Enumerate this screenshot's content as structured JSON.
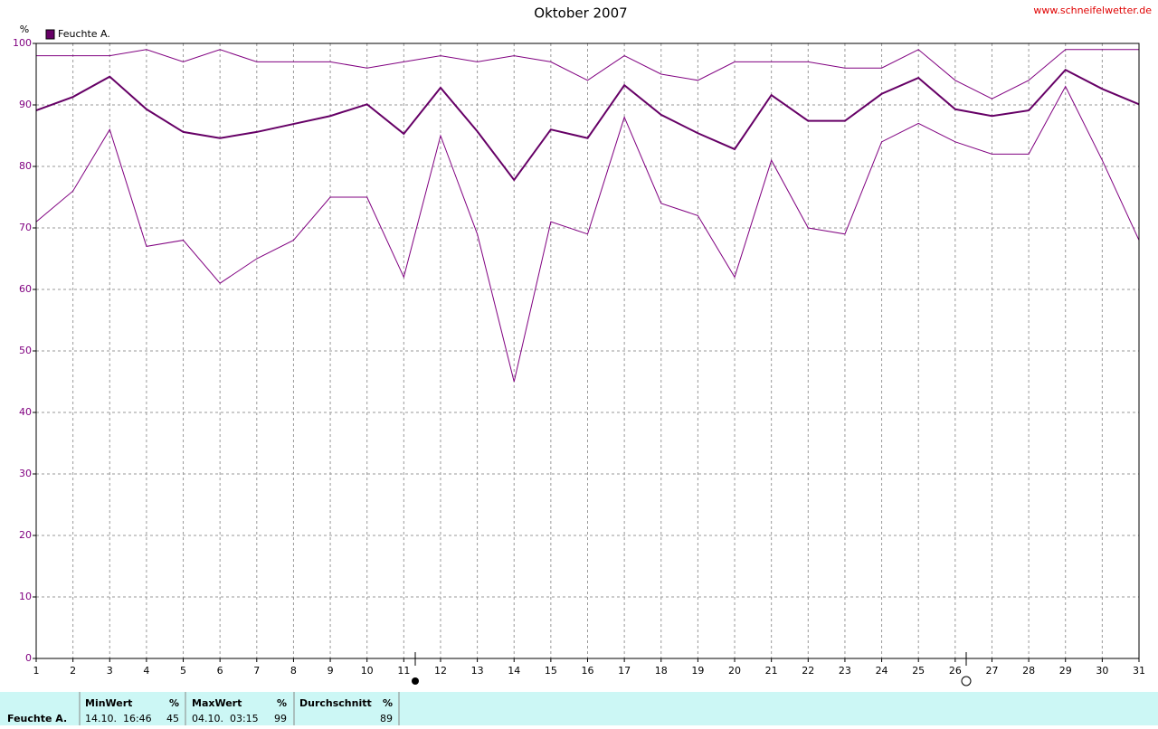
{
  "chart_data": {
    "type": "line",
    "title": "Oktober 2007",
    "watermark": "www.schneifelwetter.de",
    "y_unit": "%",
    "x": [
      1,
      2,
      3,
      4,
      5,
      6,
      7,
      8,
      9,
      10,
      11,
      12,
      13,
      14,
      15,
      16,
      17,
      18,
      19,
      20,
      21,
      22,
      23,
      24,
      25,
      26,
      27,
      28,
      29,
      30,
      31
    ],
    "xlim": [
      1,
      31
    ],
    "xticks": [
      1,
      2,
      3,
      4,
      5,
      6,
      7,
      8,
      9,
      10,
      11,
      12,
      13,
      14,
      15,
      16,
      17,
      18,
      19,
      20,
      21,
      22,
      23,
      24,
      25,
      26,
      27,
      28,
      29,
      30,
      31
    ],
    "ylim": [
      0,
      100
    ],
    "yticks": [
      0,
      10,
      20,
      30,
      40,
      50,
      60,
      70,
      80,
      90,
      100
    ],
    "grid": true,
    "series": [
      {
        "name": "Feuchte A.",
        "color": "#660066",
        "line_width": 2,
        "values": [
          89.1,
          91.3,
          94.6,
          89.3,
          85.6,
          84.6,
          85.6,
          86.9,
          88.2,
          90.1,
          85.3,
          92.8,
          85.7,
          77.8,
          86.0,
          84.6,
          93.2,
          88.4,
          85.4,
          82.8,
          91.6,
          87.4,
          87.4,
          91.8,
          94.4,
          89.3,
          88.2,
          89.1,
          95.7,
          92.6,
          90.1
        ]
      },
      {
        "color": "#800080",
        "line_width": 1,
        "values": [
          98,
          98,
          98,
          99,
          97,
          99,
          97,
          97,
          97,
          96,
          97,
          98,
          97,
          98,
          97,
          94,
          98,
          95,
          94,
          97,
          97,
          97,
          96,
          96,
          99,
          94,
          91,
          94,
          99,
          99,
          99
        ]
      },
      {
        "color": "#800080",
        "line_width": 1,
        "values": [
          71,
          76,
          86,
          67,
          68,
          61,
          65,
          68,
          75,
          75,
          62,
          85,
          69,
          45,
          71,
          69,
          88,
          74,
          72,
          62,
          81,
          70,
          69,
          84,
          87,
          84,
          82,
          82,
          93,
          81,
          68
        ]
      }
    ]
  },
  "summary": {
    "label": "Feuchte A.",
    "min": {
      "header": "MinWert",
      "unit": "%",
      "time": "14.10.  16:46",
      "value": "45"
    },
    "max": {
      "header": "MaxWert",
      "unit": "%",
      "time": "04.10.  03:15",
      "value": "99"
    },
    "avg": {
      "header": "Durchschnitt",
      "unit": "%",
      "value": "89"
    }
  }
}
